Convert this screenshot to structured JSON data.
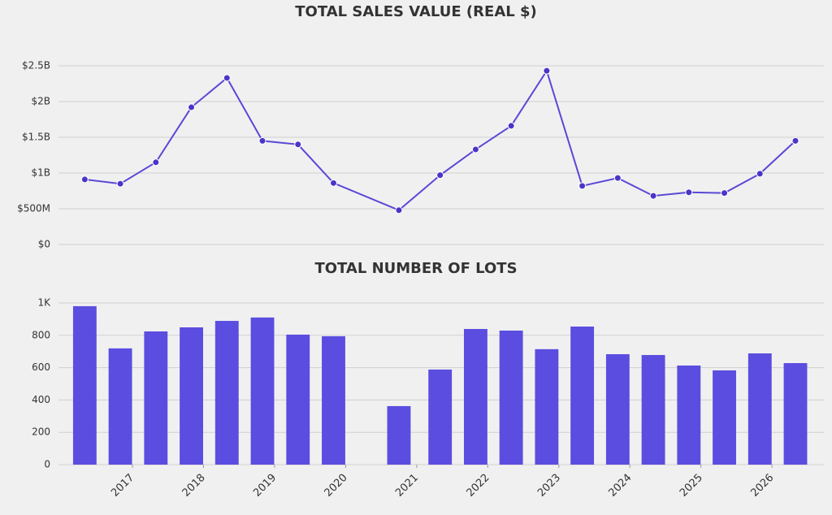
{
  "chart_data": [
    {
      "type": "line",
      "title": "TOTAL SALES VALUE (REAL $)",
      "color": "#5a48d6",
      "x": [
        2016.33,
        2016.83,
        2017.33,
        2017.83,
        2018.33,
        2018.83,
        2019.33,
        2019.83,
        2020.75,
        2021.33,
        2021.83,
        2022.33,
        2022.83,
        2023.33,
        2023.83,
        2024.33,
        2024.83,
        2025.33,
        2025.83,
        2026.33
      ],
      "values": [
        910000000,
        850000000,
        1150000000,
        1920000000,
        2330000000,
        1450000000,
        1400000000,
        860000000,
        480000000,
        970000000,
        1330000000,
        1660000000,
        2430000000,
        820000000,
        930000000,
        680000000,
        730000000,
        720000000,
        990000000,
        1450000000
      ],
      "xlim": [
        2015.96,
        2026.73
      ],
      "ylim": [
        0,
        2750000000
      ],
      "yticks": [
        {
          "value": 0,
          "label": "$0"
        },
        {
          "value": 500000000,
          "label": "$500M"
        },
        {
          "value": 1000000000,
          "label": "$1B"
        },
        {
          "value": 1500000000,
          "label": "$1.5B"
        },
        {
          "value": 2000000000,
          "label": "$2B"
        },
        {
          "value": 2500000000,
          "label": "$2.5B"
        }
      ],
      "grid": true
    },
    {
      "type": "bar",
      "title": "TOTAL NUMBER OF LOTS",
      "color": "#5b4de0",
      "x": [
        2016.33,
        2016.83,
        2017.33,
        2017.83,
        2018.33,
        2018.83,
        2019.33,
        2019.83,
        2020.75,
        2021.33,
        2021.83,
        2022.33,
        2022.83,
        2023.33,
        2023.83,
        2024.33,
        2024.83,
        2025.33,
        2025.83,
        2026.33
      ],
      "values": [
        980,
        719,
        824,
        849,
        889,
        910,
        804,
        794,
        362,
        588,
        839,
        829,
        714,
        854,
        683,
        678,
        613,
        583,
        688,
        628
      ],
      "xlim": [
        2015.96,
        2026.73
      ],
      "ylim": [
        0,
        1060
      ],
      "xticks": [
        2017,
        2018,
        2019,
        2020,
        2021,
        2022,
        2023,
        2024,
        2025,
        2026
      ],
      "yticks": [
        0,
        200,
        400,
        600,
        800,
        {
          "value": 1000,
          "label": "1K"
        }
      ],
      "grid": true
    }
  ]
}
